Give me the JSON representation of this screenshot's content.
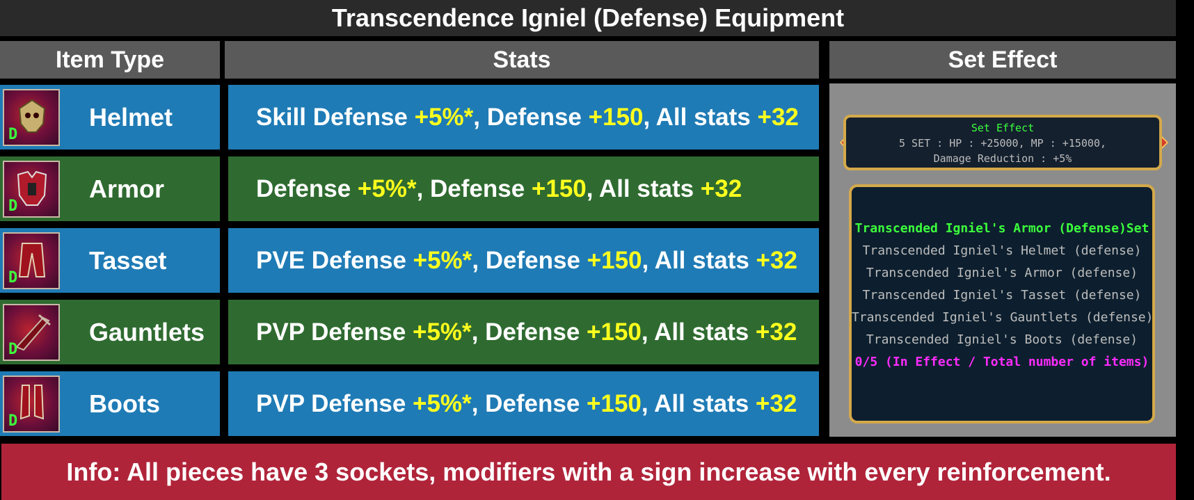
{
  "title": "Transcendence Igniel (Defense) Equipment",
  "headers": {
    "item_type": "Item Type",
    "stats": "Stats",
    "set_effect": "Set Effect"
  },
  "items": [
    {
      "name": "Helmet",
      "grade": "D",
      "icon": "helmet-icon",
      "stat1": "Skill Defense ",
      "v1": "+5%*",
      "stat2": ", Defense ",
      "v2": "+150",
      "stat3": ", All stats ",
      "v3": "+32"
    },
    {
      "name": "Armor",
      "grade": "D",
      "icon": "armor-icon",
      "stat1": "Defense ",
      "v1": "+5%*",
      "stat2": ", Defense ",
      "v2": "+150",
      "stat3": ", All stats ",
      "v3": "+32"
    },
    {
      "name": "Tasset",
      "grade": "D",
      "icon": "tasset-icon",
      "stat1": "PVE Defense ",
      "v1": "+5%*",
      "stat2": ", Defense ",
      "v2": "+150",
      "stat3": ", All stats ",
      "v3": "+32"
    },
    {
      "name": "Gauntlets",
      "grade": "D",
      "icon": "gauntlets-icon",
      "stat1": "PVP Defense ",
      "v1": "+5%*",
      "stat2": ", Defense ",
      "v2": "+150",
      "stat3": ", All stats ",
      "v3": "+32"
    },
    {
      "name": "Boots",
      "grade": "D",
      "icon": "boots-icon",
      "stat1": "PVP Defense ",
      "v1": "+5%*",
      "stat2": ", Defense ",
      "v2": "+150",
      "stat3": ", All stats ",
      "v3": "+32"
    }
  ],
  "set_effect": {
    "badge_title": "Set Effect",
    "badge_line1": "5 SET :  HP : +25000,  MP : +15000,",
    "badge_line2": "Damage Reduction :  +5%",
    "set_name": "Transcended Igniel's Armor (Defense)Set",
    "pieces": [
      "Transcended Igniel's Helmet (defense)",
      "Transcended Igniel's Armor (defense)",
      "Transcended Igniel's Tasset (defense)",
      "Transcended Igniel's Gauntlets (defense)",
      "Transcended Igniel's Boots (defense)"
    ],
    "count": "0/5 (In Effect / Total number of items)"
  },
  "info": "Info: All pieces have 3 sockets, modifiers with a sign increase with every reinforcement.",
  "colors": {
    "blue_row": "#1f7bb5",
    "green_row": "#2f6b30",
    "highlight": "#ffff1e",
    "info_bar": "#b0243a",
    "header": "#5a5a5a"
  }
}
